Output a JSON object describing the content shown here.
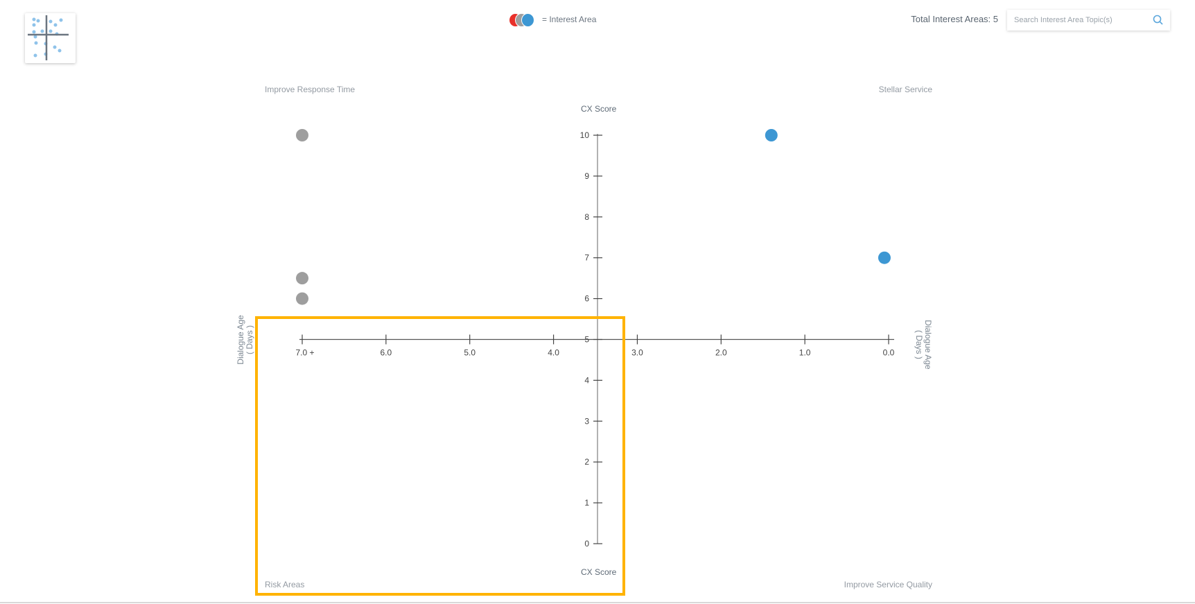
{
  "header": {
    "legend_label": "= Interest Area",
    "legend_colors": [
      "#e8302a",
      "#9e9e9e",
      "#3d97d3"
    ],
    "total_label": "Total Interest Areas: 5",
    "search_placeholder": "Search Interest Area Topic(s)",
    "search_icon": "search-icon",
    "thumbnail_icon": "scatter-plot-icon"
  },
  "quadrants": {
    "top_left": "Improve Response Time",
    "top_right": "Stellar Service",
    "bottom_left": "Risk Areas",
    "bottom_right": "Improve Service Quality"
  },
  "chart_data": {
    "type": "scatter",
    "title": "",
    "ylabel_top": "CX Score",
    "ylabel_bottom": "CX Score",
    "xlabel_left": "Dialogue Age ( Days )",
    "xlabel_right": "Dialogue Age ( Days )",
    "xlabel_line1": "Dialogue Age",
    "xlabel_line2": "( Days )",
    "xlim": [
      7,
      0
    ],
    "ylim": [
      0,
      10
    ],
    "x_ticks": [
      "7.0 +",
      "6.0",
      "5.0",
      "4.0",
      "3.0",
      "2.0",
      "1.0",
      "0.0"
    ],
    "x_tick_values": [
      7,
      6,
      5,
      4,
      3,
      2,
      1,
      0
    ],
    "y_ticks": [
      "0",
      "1",
      "2",
      "3",
      "4",
      "5",
      "6",
      "7",
      "8",
      "9",
      "10"
    ],
    "y_tick_values": [
      0,
      1,
      2,
      3,
      4,
      5,
      6,
      7,
      8,
      9,
      10
    ],
    "points": [
      {
        "x": 7.0,
        "y": 10,
        "color": "#9e9e9e"
      },
      {
        "x": 7.0,
        "y": 6.5,
        "color": "#9e9e9e"
      },
      {
        "x": 7.0,
        "y": 6,
        "color": "#9e9e9e"
      },
      {
        "x": 1.4,
        "y": 10,
        "color": "#3d97d3"
      },
      {
        "x": 0.05,
        "y": 7,
        "color": "#3d97d3"
      }
    ],
    "grid": false,
    "highlight_color": "#FFB300"
  }
}
